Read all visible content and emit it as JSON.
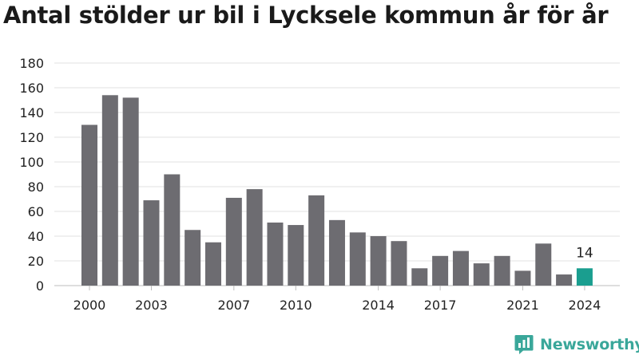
{
  "title": "Antal stölder ur bil i Lycksele kommun år för år",
  "brand": {
    "name": "Newsworthy",
    "icon": "newsworthy-logo-icon",
    "color": "#3aa79a"
  },
  "chart_data": {
    "type": "bar",
    "title": "Antal stölder ur bil i Lycksele kommun år för år",
    "xlabel": "",
    "ylabel": "",
    "categories": [
      "2000",
      "2001",
      "2002",
      "2003",
      "2004",
      "2005",
      "2006",
      "2007",
      "2008",
      "2009",
      "2010",
      "2011",
      "2012",
      "2013",
      "2014",
      "2015",
      "2016",
      "2017",
      "2018",
      "2019",
      "2020",
      "2021",
      "2022",
      "2023",
      "2024"
    ],
    "values": [
      130,
      154,
      152,
      69,
      90,
      45,
      35,
      71,
      78,
      51,
      49,
      73,
      53,
      43,
      40,
      36,
      14,
      24,
      28,
      18,
      24,
      12,
      34,
      9,
      14
    ],
    "x_tick_labels": [
      "2000",
      "2003",
      "2007",
      "2010",
      "2014",
      "2017",
      "2021",
      "2024"
    ],
    "y_ticks": [
      0,
      20,
      40,
      60,
      80,
      100,
      120,
      140,
      160,
      180
    ],
    "ylim": [
      0,
      180
    ],
    "grid": true,
    "legend": "none",
    "bar_color": "#6d6c71",
    "highlight_color": "#1a9e8f",
    "highlight_category": "2024",
    "annotations": [
      {
        "category": "2024",
        "text": "14"
      }
    ]
  }
}
